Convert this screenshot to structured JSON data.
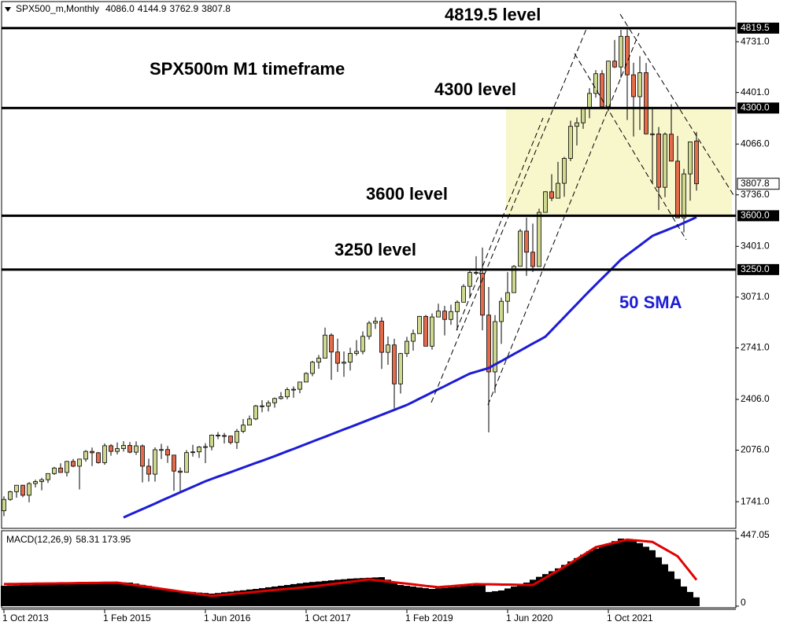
{
  "header": {
    "symbol": "SPX500_m,Monthly",
    "ohlc": [
      "4086.0",
      "4144.9",
      "3762.9",
      "3807.8"
    ]
  },
  "chart_data": [
    {
      "type": "candlestick",
      "title": "SPX500m M1 timeframe",
      "categories": [
        "1 Oct 2013",
        null,
        null,
        null,
        null,
        null,
        null,
        null,
        null,
        null,
        null,
        null,
        null,
        null,
        null,
        null,
        "1 Feb 2015",
        null,
        null,
        null,
        null,
        null,
        null,
        null,
        null,
        null,
        null,
        null,
        null,
        null,
        null,
        null,
        "1 Jun 2016",
        null,
        null,
        null,
        null,
        null,
        null,
        null,
        null,
        null,
        null,
        null,
        null,
        null,
        null,
        null,
        "1 Oct 2017",
        null,
        null,
        null,
        null,
        null,
        null,
        null,
        null,
        null,
        null,
        null,
        null,
        null,
        null,
        null,
        "1 Feb 2019",
        null,
        null,
        null,
        null,
        null,
        null,
        null,
        null,
        null,
        null,
        null,
        null,
        null,
        null,
        null,
        "1 Jun 2020",
        null,
        null,
        null,
        null,
        null,
        null,
        null,
        null,
        null,
        null,
        null,
        null,
        null,
        null,
        null,
        "1 Oct 2021",
        null,
        null,
        null,
        null,
        null,
        null,
        null,
        null,
        null,
        null,
        null,
        null,
        null,
        null
      ],
      "open": [
        1682,
        1756,
        1806,
        1848,
        1783,
        1859,
        1872,
        1884,
        1924,
        1960,
        1931,
        2003,
        1972,
        2018,
        2068,
        2059,
        1995,
        2105,
        2068,
        2086,
        2107,
        2063,
        2104,
        1972,
        1920,
        2079,
        2080,
        2044,
        1940,
        1932,
        2060,
        2065,
        2097,
        2099,
        2174,
        2171,
        2168,
        2126,
        2199,
        2239,
        2279,
        2364,
        2363,
        2384,
        2412,
        2423,
        2470,
        2472,
        2519,
        2575,
        2648,
        2674,
        2824,
        2714,
        2641,
        2648,
        2705,
        2718,
        2816,
        2902,
        2914,
        2712,
        2760,
        2507,
        2704,
        2784,
        2834,
        2946,
        2752,
        2942,
        2980,
        2926,
        2977,
        3038,
        3141,
        3231,
        3226,
        2954,
        2585,
        2912,
        3044,
        3100,
        3271,
        3500,
        3363,
        3270,
        3622,
        3756,
        3714,
        3811,
        3973,
        4181,
        4204,
        4298,
        4395,
        4523,
        4308,
        4605,
        4567,
        4766,
        4516,
        4374,
        4530,
        4132,
        4132,
        3785,
        4130,
        3955,
        3586,
        3872,
        4086
      ],
      "high": [
        1776,
        1813,
        1849,
        1851,
        1868,
        1884,
        1897,
        1925,
        1968,
        1991,
        2006,
        2019,
        2019,
        2076,
        2093,
        2065,
        2120,
        2115,
        2126,
        2135,
        2129,
        2133,
        2113,
        2021,
        2094,
        2117,
        2104,
        2044,
        1963,
        2076,
        2111,
        2103,
        2121,
        2178,
        2194,
        2188,
        2169,
        2214,
        2278,
        2301,
        2371,
        2401,
        2399,
        2418,
        2454,
        2484,
        2491,
        2519,
        2582,
        2657,
        2695,
        2873,
        2836,
        2801,
        2718,
        2742,
        2791,
        2848,
        2916,
        2941,
        2940,
        2815,
        2800,
        2708,
        2813,
        2860,
        2949,
        2955,
        2965,
        3028,
        3014,
        3022,
        3050,
        3155,
        3248,
        3337,
        3393,
        3137,
        2954,
        3068,
        3233,
        3279,
        3514,
        3588,
        3549,
        3646,
        3760,
        3870,
        3950,
        3983,
        4218,
        4238,
        4302,
        4429,
        4546,
        4546,
        4608,
        4743,
        4808,
        4819.5,
        4595,
        4637,
        4593,
        4307,
        4177,
        4141,
        4325,
        4119,
        3905,
        4080,
        4144.9
      ],
      "low": [
        1647,
        1747,
        1767,
        1770,
        1737,
        1834,
        1815,
        1863,
        1915,
        1930,
        1905,
        1965,
        1821,
        2001,
        1973,
        1989,
        1981,
        2040,
        2049,
        2067,
        2056,
        2045,
        1867,
        1872,
        1872,
        2019,
        1993,
        1812,
        1810,
        1932,
        2034,
        2026,
        1992,
        2075,
        2148,
        2120,
        2114,
        2084,
        2187,
        2245,
        2271,
        2322,
        2328,
        2352,
        2405,
        2407,
        2417,
        2446,
        2520,
        2557,
        2605,
        2683,
        2533,
        2585,
        2553,
        2594,
        2691,
        2699,
        2795,
        2864,
        2604,
        2631,
        2347,
        2444,
        2682,
        2723,
        2848,
        2751,
        2729,
        2952,
        2822,
        2891,
        2855,
        3050,
        3070,
        3214,
        2855,
        2192,
        2448,
        2767,
        2966,
        3115,
        3285,
        3209,
        3234,
        3280,
        3633,
        3695,
        3725,
        3723,
        3955,
        4057,
        4165,
        4234,
        4367,
        4306,
        4279,
        4560,
        4496,
        4222,
        4115,
        4157,
        4129,
        3811,
        3637,
        3721,
        3954,
        3584,
        3492,
        3698,
        3762.9
      ],
      "close": [
        1756,
        1806,
        1848,
        1783,
        1859,
        1872,
        1884,
        1924,
        1960,
        1931,
        2003,
        1972,
        2018,
        2068,
        2059,
        1995,
        2105,
        2068,
        2086,
        2107,
        2063,
        2104,
        1972,
        1920,
        2079,
        2080,
        2044,
        1940,
        1932,
        2060,
        2065,
        2097,
        2099,
        2174,
        2171,
        2168,
        2126,
        2199,
        2239,
        2279,
        2364,
        2363,
        2384,
        2412,
        2423,
        2470,
        2472,
        2519,
        2575,
        2648,
        2674,
        2824,
        2714,
        2641,
        2648,
        2705,
        2718,
        2816,
        2902,
        2914,
        2712,
        2760,
        2507,
        2704,
        2784,
        2834,
        2946,
        2752,
        2942,
        2980,
        2926,
        2977,
        3038,
        3141,
        3231,
        3226,
        2954,
        2585,
        2912,
        3044,
        3100,
        3271,
        3500,
        3363,
        3270,
        3622,
        3756,
        3714,
        3811,
        3973,
        4181,
        4204,
        4298,
        4395,
        4523,
        4308,
        4605,
        4567,
        4766,
        4516,
        4374,
        4530,
        4132,
        4132,
        3785,
        4130,
        3955,
        3586,
        3872,
        4080,
        3807.8
      ],
      "up_color": "#cfd88f",
      "down_color": "#e46c4a",
      "series": [
        {
          "name": "50 SMA",
          "color": "#1c1cd6",
          "values": [
            null,
            null,
            null,
            null,
            null,
            null,
            null,
            null,
            null,
            null,
            null,
            null,
            null,
            null,
            null,
            null,
            null,
            null,
            null,
            1639,
            1657,
            1675,
            1693,
            1711,
            1729,
            1748,
            1766,
            1784,
            1802,
            1820,
            1838,
            1856,
            1874,
            1889,
            1904,
            1918,
            1933,
            1948,
            1963,
            1978,
            1993,
            2007,
            2022,
            2037,
            2053,
            2069,
            2084,
            2100,
            2116,
            2132,
            2148,
            2163,
            2179,
            2195,
            2211,
            2226,
            2242,
            2258,
            2274,
            2290,
            2306,
            2322,
            2338,
            2354,
            2370,
            2390,
            2411,
            2431,
            2452,
            2472,
            2492,
            2513,
            2533,
            2554,
            2574,
            2586,
            2598,
            2610,
            2633,
            2655,
            2678,
            2701,
            2723,
            2746,
            2769,
            2791,
            2814,
            2856,
            2899,
            2941,
            2984,
            3026,
            3069,
            3111,
            3152,
            3193,
            3233,
            3274,
            3315,
            3346,
            3377,
            3407,
            3438,
            3469,
            3486,
            3502,
            3519,
            3535,
            3554,
            3572,
            3591
          ]
        }
      ],
      "levels": [
        {
          "value": 4819.5,
          "label": "4819.5"
        },
        {
          "value": 4300,
          "label": "4300.0"
        },
        {
          "value": 3600,
          "label": "3600.0"
        },
        {
          "value": 3250,
          "label": "3250.0"
        }
      ],
      "annotations": [
        "4819.5 level",
        "4300 level",
        "3600 level",
        "3250 level"
      ],
      "zone": [
        3600,
        4300
      ],
      "zone_color": "#f8f7cc",
      "current_price": 3807.8,
      "ylim": [
        1578,
        4987
      ],
      "yticks": [
        {
          "value": 4731,
          "label": "4731.0"
        },
        {
          "value": 4401,
          "label": "4401.0"
        },
        {
          "value": 4066,
          "label": "4066.0"
        },
        {
          "value": 3736,
          "label": "3736.0"
        },
        {
          "value": 3401,
          "label": "3401.0"
        },
        {
          "value": 3071,
          "label": "3071.0"
        },
        {
          "value": 2741,
          "label": "2741.0"
        },
        {
          "value": 2406,
          "label": "2406.0"
        },
        {
          "value": 2076,
          "label": "2076.0"
        },
        {
          "value": 1741,
          "label": "1741.0"
        }
      ]
    },
    {
      "type": "macd",
      "title": "MACD(12,26,9)",
      "histogram": {
        "color": "#000000",
        "values": [
          135,
          137,
          138,
          140,
          141,
          143,
          145,
          146,
          148,
          150,
          151,
          153,
          154,
          156,
          158,
          159,
          161,
          160,
          159,
          157,
          156,
          149,
          141,
          134,
          126,
          119,
          111,
          104,
          101,
          97,
          94,
          90,
          87,
          83,
          87,
          92,
          96,
          101,
          105,
          110,
          114,
          119,
          125,
          130,
          135,
          140,
          146,
          151,
          156,
          160,
          163,
          167,
          171,
          175,
          178,
          182,
          184,
          186,
          188,
          190,
          192,
          175,
          157,
          140,
          135,
          130,
          124,
          119,
          114,
          118,
          121,
          125,
          128,
          132,
          135,
          141,
          146,
          94,
          99,
          104,
          117,
          130,
          143,
          156,
          175,
          194,
          212,
          231,
          250,
          273,
          296,
          318,
          341,
          364,
          381,
          397,
          414,
          430,
          447,
          444,
          440,
          417,
          393,
          370,
          323,
          277,
          230,
          180,
          130,
          94,
          58.31
        ]
      },
      "signal": {
        "color": "#e00000",
        "values": [
          146,
          147,
          147,
          148,
          148,
          149,
          149,
          150,
          150,
          151,
          151,
          152,
          153,
          153,
          154,
          154,
          155,
          155,
          156,
          150,
          144,
          138,
          133,
          127,
          121,
          115,
          109,
          103,
          97,
          91,
          86,
          80,
          74,
          68,
          72,
          76,
          80,
          84,
          87,
          91,
          95,
          99,
          103,
          107,
          111,
          115,
          118,
          122,
          126,
          130,
          135,
          140,
          146,
          151,
          156,
          161,
          166,
          172,
          177,
          172,
          168,
          163,
          158,
          153,
          149,
          144,
          139,
          134,
          130,
          125,
          129,
          132,
          136,
          139,
          143,
          146,
          145,
          145,
          144,
          143,
          143,
          142,
          141,
          141,
          140,
          164,
          188,
          212,
          236,
          260,
          286,
          312,
          338,
          364,
          390,
          400,
          410,
          420,
          430,
          440,
          436,
          433,
          429,
          425,
          401,
          378,
          354,
          330,
          278,
          226,
          173.95
        ]
      },
      "ylim": [
        -21,
        499
      ],
      "yticks": [
        447.05,
        0
      ]
    }
  ]
}
